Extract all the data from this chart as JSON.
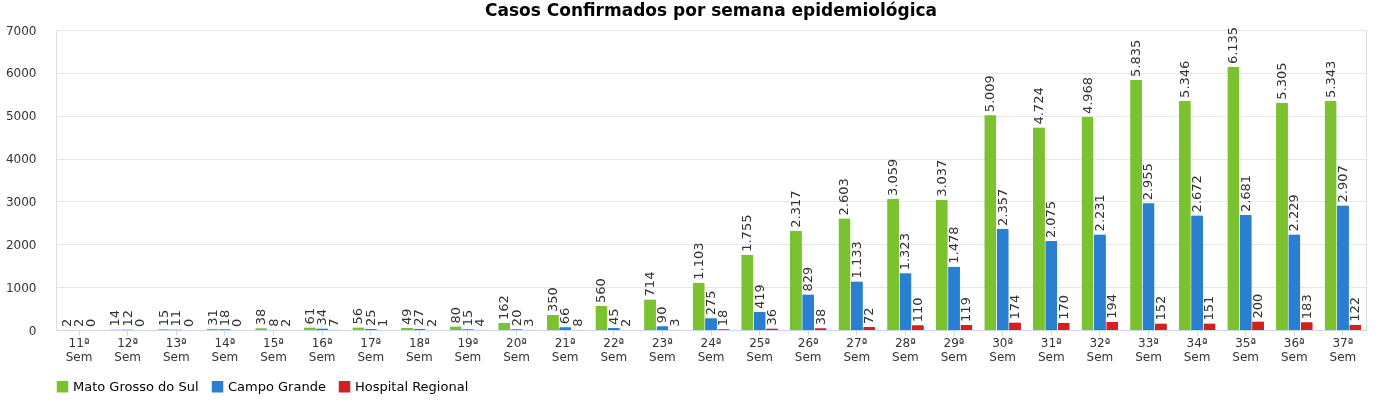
{
  "chart_data": {
    "type": "bar",
    "title": "Casos Confirmados por semana epidemiológica",
    "categories": [
      "11ª Sem",
      "12ª Sem",
      "13ª Sem",
      "14ª Sem",
      "15ª Sem",
      "16ª Sem",
      "17ª Sem",
      "18ª Sem",
      "19ª Sem",
      "20ª Sem",
      "21ª Sem",
      "22ª Sem",
      "23ª Sem",
      "24ª Sem",
      "25ª Sem",
      "26ª Sem",
      "27ª Sem",
      "28ª Sem",
      "29ª Sem",
      "30ª Sem",
      "31ª Sem",
      "32ª Sem",
      "33ª Sem",
      "34ª Sem",
      "35ª Sem",
      "36ª Sem",
      "37ª Sem"
    ],
    "series": [
      {
        "name": "Mato Grosso do Sul",
        "color": "#7cc230",
        "values": [
          2,
          14,
          15,
          31,
          38,
          61,
          56,
          49,
          80,
          162,
          350,
          560,
          714,
          1103,
          1755,
          2317,
          2603,
          3059,
          3037,
          5009,
          4724,
          4968,
          5835,
          5346,
          6135,
          5305,
          5343
        ],
        "value_labels": [
          "2",
          "14",
          "15",
          "31",
          "38",
          "61",
          "56",
          "49",
          "80",
          "162",
          "350",
          "560",
          "714",
          "1.103",
          "1.755",
          "2.317",
          "2.603",
          "3.059",
          "3.037",
          "5.009",
          "4.724",
          "4.968",
          "5.835",
          "5.346",
          "6.135",
          "5.305",
          "5.343"
        ]
      },
      {
        "name": "Campo Grande",
        "color": "#2a7fd0",
        "values": [
          2,
          12,
          11,
          18,
          8,
          34,
          25,
          27,
          15,
          20,
          66,
          45,
          90,
          275,
          419,
          829,
          1133,
          1323,
          1478,
          2357,
          2075,
          2231,
          2955,
          2672,
          2681,
          2229,
          2907
        ],
        "value_labels": [
          "2",
          "12",
          "11",
          "18",
          "8",
          "34",
          "25",
          "27",
          "15",
          "20",
          "66",
          "45",
          "90",
          "275",
          "419",
          "829",
          "1.133",
          "1.323",
          "1.478",
          "2.357",
          "2.075",
          "2.231",
          "2.955",
          "2.672",
          "2.681",
          "2.229",
          "2.907"
        ]
      },
      {
        "name": "Hospital Regional",
        "color": "#d42020",
        "values": [
          0,
          0,
          0,
          0,
          2,
          7,
          1,
          2,
          4,
          3,
          8,
          2,
          3,
          18,
          36,
          38,
          72,
          110,
          119,
          174,
          170,
          194,
          152,
          151,
          200,
          183,
          122
        ],
        "value_labels": [
          "0",
          "0",
          "0",
          "0",
          "2",
          "7",
          "1",
          "2",
          "4",
          "3",
          "8",
          "2",
          "3",
          "18",
          "36",
          "38",
          "72",
          "110",
          "119",
          "174",
          "170",
          "194",
          "152",
          "151",
          "200",
          "183",
          "122"
        ]
      }
    ],
    "ylim": [
      0,
      7000
    ],
    "yticks": [
      0,
      1000,
      2000,
      3000,
      4000,
      5000,
      6000,
      7000
    ],
    "grid": "y",
    "legend": "bottom"
  }
}
